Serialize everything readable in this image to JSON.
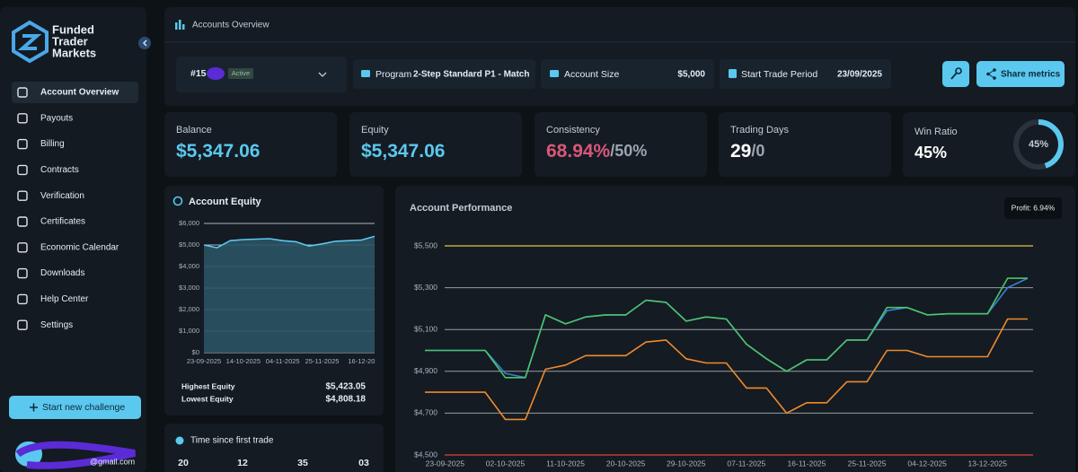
{
  "sidebar": {
    "brand": [
      "Funded",
      "Trader",
      "Markets"
    ],
    "nav": [
      "Account Overview",
      "Payouts",
      "Billing",
      "Contracts",
      "Verification",
      "Certificates",
      "Economic Calendar",
      "Downloads",
      "Help Center",
      "Settings"
    ],
    "cta": "Start new challenge",
    "user_email": "@gmail.com"
  },
  "header": {
    "title": "Accounts Overview"
  },
  "account": {
    "id": "#15",
    "status": "Active",
    "program_label": "Program",
    "program": "2-Step Standard P1 - Match",
    "size_label": "Account Size",
    "size": "$5,000",
    "period_label": "Start Trade Period",
    "period": "23/09/2025",
    "share": "Share metrics"
  },
  "stats": [
    {
      "label": "Balance",
      "value": "$5,347.06"
    },
    {
      "label": "Equity",
      "value": "$5,347.06"
    },
    {
      "label": "Consistency",
      "value": "68.94%",
      "target": "/50%"
    },
    {
      "label": "Trading Days",
      "value": "29",
      "target": "/0"
    },
    {
      "label": "Win Ratio",
      "value": "45%",
      "ring": 45,
      "ring_label": "45%"
    }
  ],
  "equity_chart": {
    "type": "area",
    "title": "Account Equity",
    "categories": [
      "23-09-2025",
      null,
      null,
      "14-10-2025",
      null,
      null,
      "04-11-2025",
      null,
      null,
      "25-11-2025",
      null,
      null,
      "16-12-20",
      null
    ],
    "values": [
      5000,
      4870,
      5200,
      5250,
      5270,
      5290,
      5200,
      5150,
      4950,
      5050,
      5170,
      5200,
      5230,
      5400
    ],
    "color": "#5bc8ef",
    "ylim": [
      0,
      6000
    ],
    "yticks": [
      {
        "value": 0,
        "label": "$0"
      },
      {
        "value": 1000,
        "label": "$1,000"
      },
      {
        "value": 2000,
        "label": "$2,000"
      },
      {
        "value": 3000,
        "label": "$3,000"
      },
      {
        "value": 4000,
        "label": "$4,000"
      },
      {
        "value": 5000,
        "label": "$5,000"
      },
      {
        "value": 6000,
        "label": "$6,000"
      }
    ],
    "grid": true,
    "highest_label": "Highest Equity",
    "highest": "$5,423.05",
    "lowest_label": "Lowest Equity",
    "lowest": "$4,808.18"
  },
  "time_since": {
    "title": "Time since first trade",
    "values": [
      "20",
      "12",
      "35",
      "03"
    ]
  },
  "performance_chart": {
    "type": "line",
    "title": "Account Performance",
    "badge": "Profit: 6.94%",
    "categories": [
      null,
      "23-09-2025",
      null,
      null,
      "02-10-2025",
      null,
      null,
      "11-10-2025",
      null,
      null,
      "20-10-2025",
      null,
      null,
      "29-10-2025",
      null,
      null,
      "07-11-2025",
      null,
      null,
      "16-11-2025",
      null,
      null,
      "25-11-2025",
      null,
      null,
      "04-12-2025",
      null,
      null,
      "13-12-2025",
      null,
      null
    ],
    "series": [
      {
        "color": "#3b7dd8",
        "values": [
          5000,
          5000,
          5000,
          5000,
          4890,
          4870,
          5170,
          5127,
          5160,
          5170,
          5170,
          5240,
          5230,
          5140,
          5160,
          5150,
          5030,
          4960,
          4900,
          4955,
          4955,
          5050,
          5050,
          5190,
          5205,
          5170,
          5175,
          5175,
          5175,
          5300,
          5345
        ]
      },
      {
        "color": "#4cc46a",
        "values": [
          5000,
          5000,
          5000,
          5000,
          4870,
          4870,
          5170,
          5127,
          5160,
          5170,
          5170,
          5240,
          5230,
          5140,
          5160,
          5150,
          5030,
          4960,
          4900,
          4955,
          4955,
          5050,
          5050,
          5205,
          5205,
          5170,
          5175,
          5175,
          5175,
          5345,
          5345
        ]
      },
      {
        "color": "#f08a2c",
        "values": [
          4800,
          4800,
          4800,
          4800,
          4670,
          4670,
          4910,
          4930,
          4975,
          4975,
          4975,
          5040,
          5050,
          4960,
          4940,
          4940,
          4820,
          4820,
          4700,
          4750,
          4750,
          4850,
          4850,
          5000,
          5000,
          4970,
          4970,
          4970,
          4970,
          5150,
          5150
        ]
      }
    ],
    "reference_lines": [
      {
        "value": 5500,
        "color": "#e5c341"
      },
      {
        "value": 4500,
        "color": "#e0443c"
      }
    ],
    "ylim": [
      4500,
      5500
    ],
    "yticks": [
      {
        "value": 4500,
        "label": "$4,500"
      },
      {
        "value": 4700,
        "label": "$4,700"
      },
      {
        "value": 4900,
        "label": "$4,900"
      },
      {
        "value": 5100,
        "label": "$5,100"
      },
      {
        "value": 5300,
        "label": "$5,300"
      },
      {
        "value": 5500,
        "label": "$5,500"
      }
    ],
    "grid": true
  }
}
